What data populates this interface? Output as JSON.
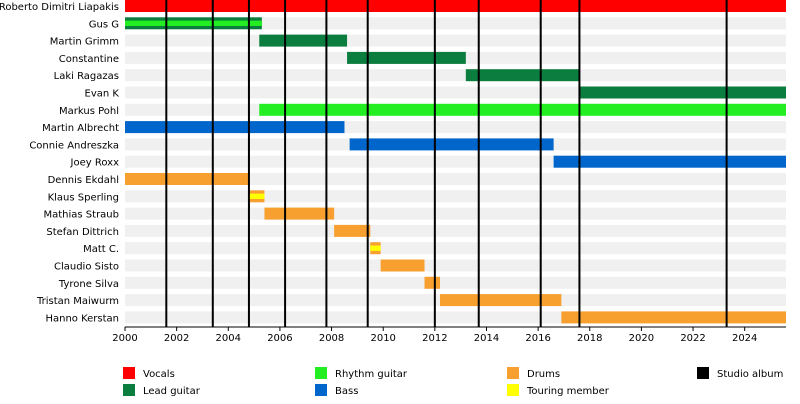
{
  "chart_data": {
    "type": "timeline",
    "xlim": [
      2000,
      2025.6
    ],
    "xticks": [
      2000,
      2002,
      2004,
      2006,
      2008,
      2010,
      2012,
      2014,
      2016,
      2018,
      2020,
      2022,
      2024
    ],
    "roles": [
      {
        "name": "Vocals",
        "color": "#ff0000"
      },
      {
        "name": "Lead guitar",
        "color": "#0b7d3e"
      },
      {
        "name": "Rhythm guitar",
        "color": "#22ee22"
      },
      {
        "name": "Bass",
        "color": "#0066cc"
      },
      {
        "name": "Drums",
        "color": "#f7a030"
      },
      {
        "name": "Touring member",
        "color": "#ffff00"
      },
      {
        "name": "Studio album",
        "color": "#000000"
      }
    ],
    "members": [
      {
        "name": "Roberto Dimitri Liapakis",
        "spans": [
          {
            "role": 0,
            "start": 2000,
            "end": 2025.6
          }
        ]
      },
      {
        "name": "Gus G",
        "spans": [
          {
            "role": 1,
            "start": 2000,
            "end": 2005.3
          },
          {
            "role": 2,
            "start": 2000,
            "end": 2005.3,
            "thin": true
          }
        ]
      },
      {
        "name": "Martin Grimm",
        "spans": [
          {
            "role": 1,
            "start": 2005.2,
            "end": 2008.6
          }
        ]
      },
      {
        "name": "Constantine",
        "spans": [
          {
            "role": 1,
            "start": 2008.6,
            "end": 2013.2
          }
        ]
      },
      {
        "name": "Laki Ragazas",
        "spans": [
          {
            "role": 1,
            "start": 2013.2,
            "end": 2017.6
          }
        ]
      },
      {
        "name": "Evan K",
        "spans": [
          {
            "role": 1,
            "start": 2017.6,
            "end": 2025.6
          }
        ]
      },
      {
        "name": "Markus Pohl",
        "spans": [
          {
            "role": 2,
            "start": 2005.2,
            "end": 2025.6
          }
        ]
      },
      {
        "name": "Martin Albrecht",
        "spans": [
          {
            "role": 3,
            "start": 2000,
            "end": 2008.5
          }
        ]
      },
      {
        "name": "Connie Andreszka",
        "spans": [
          {
            "role": 3,
            "start": 2008.7,
            "end": 2016.6
          }
        ]
      },
      {
        "name": "Joey Roxx",
        "spans": [
          {
            "role": 3,
            "start": 2016.6,
            "end": 2025.6
          }
        ]
      },
      {
        "name": "Dennis Ekdahl",
        "spans": [
          {
            "role": 4,
            "start": 2000,
            "end": 2004.8
          }
        ]
      },
      {
        "name": "Klaus Sperling",
        "spans": [
          {
            "role": 4,
            "start": 2004.8,
            "end": 2005.4
          },
          {
            "role": 5,
            "start": 2004.8,
            "end": 2005.4,
            "thin": true
          }
        ]
      },
      {
        "name": "Mathias Straub",
        "spans": [
          {
            "role": 4,
            "start": 2005.4,
            "end": 2008.1
          }
        ]
      },
      {
        "name": "Stefan Dittrich",
        "spans": [
          {
            "role": 4,
            "start": 2008.1,
            "end": 2009.5
          }
        ]
      },
      {
        "name": "Matt C.",
        "spans": [
          {
            "role": 4,
            "start": 2009.5,
            "end": 2009.9
          },
          {
            "role": 5,
            "start": 2009.5,
            "end": 2009.9,
            "thin": true
          }
        ]
      },
      {
        "name": "Claudio Sisto",
        "spans": [
          {
            "role": 4,
            "start": 2009.9,
            "end": 2011.6
          }
        ]
      },
      {
        "name": "Tyrone Silva",
        "spans": [
          {
            "role": 4,
            "start": 2011.6,
            "end": 2012.2
          }
        ]
      },
      {
        "name": "Tristan Maiwurm",
        "spans": [
          {
            "role": 4,
            "start": 2012.2,
            "end": 2016.9
          }
        ]
      },
      {
        "name": "Hanno Kerstan",
        "spans": [
          {
            "role": 4,
            "start": 2016.9,
            "end": 2025.6
          }
        ]
      }
    ],
    "albums": [
      2001.6,
      2003.4,
      2004.8,
      2006.2,
      2007.8,
      2009.4,
      2012.0,
      2013.7,
      2016.1,
      2017.6,
      2023.3
    ]
  }
}
